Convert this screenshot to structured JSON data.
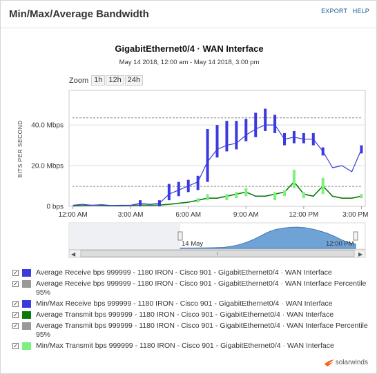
{
  "header": {
    "title": "Min/Max/Average Bandwidth",
    "export_label": "EXPORT",
    "help_label": "HELP"
  },
  "chart": {
    "title": "GigabitEthernet0/4 · WAN Interface",
    "subtitle": "May 14 2018, 12:00 am - May 14 2018, 3:00 pm"
  },
  "zoom": {
    "label": "Zoom",
    "options": [
      "1h",
      "12h",
      "24h"
    ]
  },
  "chart_data": {
    "type": "line",
    "ylabel": "BITS PER SECOND",
    "y_ticks": [
      "0 bps",
      "20.0 Mbps",
      "40.0 Mbps"
    ],
    "y_tick_values": [
      0,
      20,
      40
    ],
    "ylim": [
      0,
      57
    ],
    "x_ticks": [
      "12:00 AM",
      "3:00 AM",
      "6:00 AM",
      "9:00 AM",
      "12:00 PM",
      "3:00 PM"
    ],
    "x_tick_values": [
      0,
      3,
      6,
      9,
      12,
      15
    ],
    "xlim": [
      -0.2,
      15.2
    ],
    "grid": true,
    "percentile95_receive": 43.5,
    "percentile95_transmit": 9.8,
    "series": [
      {
        "name": "Average Receive bps 999999 - 1180 IRON - Cisco 901 - GigabitEthernet0/4 · WAN Interface",
        "color": "#3a3ae0",
        "x": [
          0,
          0.5,
          1,
          1.5,
          2,
          2.5,
          3,
          3.5,
          4,
          4.5,
          5,
          5.5,
          6,
          6.5,
          7,
          7.5,
          8,
          8.5,
          9,
          9.5,
          10,
          10.5,
          11,
          11.5,
          12,
          12.5,
          13,
          13.5,
          14,
          14.5,
          15
        ],
        "y": [
          0.5,
          1,
          0.5,
          0.8,
          0.4,
          0.5,
          0.5,
          1.5,
          1,
          1.5,
          6,
          8,
          10,
          12,
          22,
          28,
          30,
          31,
          35,
          38,
          40,
          40,
          33,
          34,
          33,
          33,
          27,
          19,
          20,
          17,
          28
        ]
      },
      {
        "name": "Average Receive bps 999999 - 1180 IRON - Cisco 901 - GigabitEthernet0/4 · WAN Interface Percentile 95%",
        "color": "#999999",
        "values": [
          43.5
        ]
      },
      {
        "name": "Min/Max Receive bps 999999 - 1180 IRON - Cisco 901 - GigabitEthernet0/4 · WAN Interface",
        "color": "#3a3ae0",
        "x": [
          3.5,
          4.5,
          5,
          5.5,
          6,
          6.5,
          7,
          7.5,
          8,
          8.5,
          9,
          9.5,
          10,
          10.5,
          11,
          11.5,
          12,
          12.5,
          13,
          15
        ],
        "low": [
          0,
          0,
          3,
          5,
          7,
          8,
          12,
          24,
          27,
          28,
          32,
          34,
          37,
          36,
          30,
          31,
          31,
          30,
          25,
          26
        ],
        "high": [
          3,
          3,
          11,
          12,
          13,
          15,
          38,
          40,
          42,
          42,
          43,
          46,
          48,
          45,
          36,
          37,
          36,
          36,
          29,
          30
        ]
      },
      {
        "name": "Average Transmit bps 999999 - 1180 IRON - Cisco 901 - GigabitEthernet0/4 · WAN Interface",
        "color": "#0a7a0a",
        "x": [
          0,
          0.5,
          1,
          1.5,
          2,
          2.5,
          3,
          3.5,
          4,
          4.5,
          5,
          5.5,
          6,
          6.5,
          7,
          7.5,
          8,
          8.5,
          9,
          9.5,
          10,
          10.5,
          11,
          11.5,
          12,
          12.5,
          13,
          13.5,
          14,
          14.5,
          15
        ],
        "y": [
          0.3,
          0.3,
          0.5,
          0.4,
          0.3,
          0.3,
          0.4,
          0.6,
          0.5,
          0.6,
          1,
          1.5,
          2,
          3,
          4,
          4,
          5,
          6,
          7,
          5,
          5,
          6,
          7,
          12,
          6,
          5,
          10,
          5,
          4,
          4,
          5
        ]
      },
      {
        "name": "Average Transmit bps 999999 - 1180 IRON - Cisco 901 - GigabitEthernet0/4 · WAN Interface Percentile 95%",
        "color": "#999999",
        "values": [
          9.8
        ]
      },
      {
        "name": "Min/Max Transmit bps 999999 - 1180 IRON - Cisco 901 - GigabitEthernet0/4 · WAN Interface",
        "color": "#7df07d",
        "x": [
          6.5,
          7,
          8,
          8.5,
          9,
          10.5,
          11,
          11.5,
          12,
          13,
          15
        ],
        "low": [
          2,
          3,
          3,
          4,
          5,
          3,
          5,
          9,
          4,
          6,
          4
        ],
        "high": [
          4,
          6,
          6,
          7,
          9,
          7,
          8,
          18,
          7,
          14,
          6
        ]
      }
    ]
  },
  "navigator": {
    "date_label": "14 May",
    "time_label": "12:00 PM",
    "area_color": "#6fa3d6",
    "values": [
      0.3,
      0.3,
      0.3,
      0.35,
      0.4,
      0.5,
      0.7,
      1.4,
      2.5,
      4,
      6,
      8.5,
      11,
      12.8,
      13.7,
      14.3,
      14.5,
      14.1,
      13.2,
      12,
      10.5,
      8.5,
      6,
      4,
      3
    ],
    "left_arrow": "◀",
    "right_arrow": "▶"
  },
  "legend": [
    {
      "label": "Average Receive bps 999999 - 1180 IRON - Cisco 901 - GigabitEthernet0/4 · WAN Interface",
      "color": "#3a3ae0",
      "checked": "✓"
    },
    {
      "label": "Average Receive bps 999999 - 1180 IRON - Cisco 901 - GigabitEthernet0/4 · WAN Interface Percentile 95%",
      "color": "#999999",
      "checked": "✓"
    },
    {
      "label": "Min/Max Receive bps 999999 - 1180 IRON - Cisco 901 - GigabitEthernet0/4 · WAN Interface",
      "color": "#3a3ae0",
      "checked": "✓"
    },
    {
      "label": "Average Transmit bps 999999 - 1180 IRON - Cisco 901 - GigabitEthernet0/4 · WAN Interface",
      "color": "#0a7a0a",
      "checked": "✓"
    },
    {
      "label": "Average Transmit bps 999999 - 1180 IRON - Cisco 901 - GigabitEthernet0/4 · WAN Interface Percentile 95%",
      "color": "#999999",
      "checked": "✓"
    },
    {
      "label": "Min/Max Transmit bps 999999 - 1180 IRON - Cisco 901 - GigabitEthernet0/4 · WAN Interface",
      "color": "#7df07d",
      "checked": "✓"
    }
  ],
  "footer": {
    "brand": "solarwinds",
    "brand_color": "#f26522"
  }
}
